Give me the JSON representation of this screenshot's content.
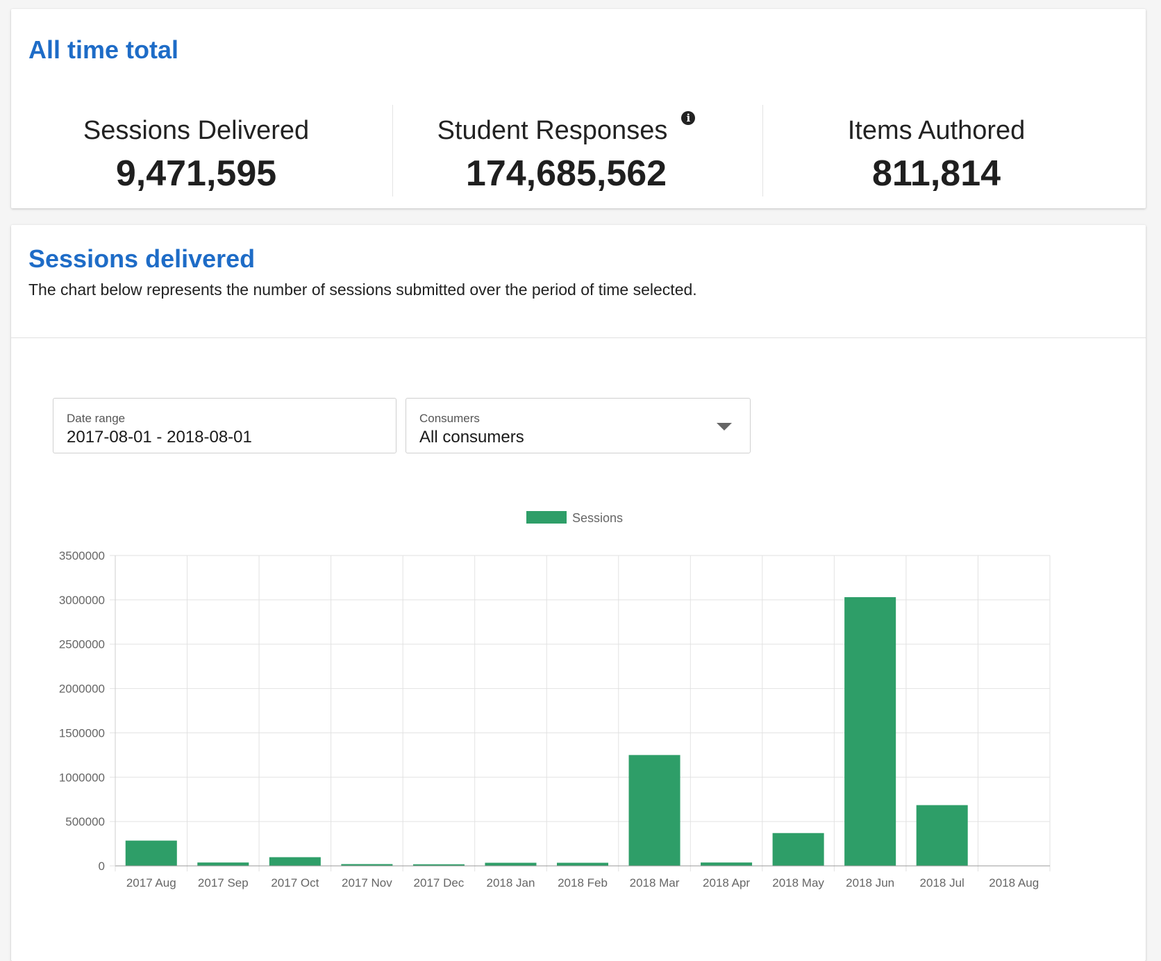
{
  "all_time": {
    "title": "All time total",
    "stats": [
      {
        "label": "Sessions Delivered",
        "value": "9,471,595"
      },
      {
        "label": "Student Responses",
        "value": "174,685,562",
        "info_icon": "info-icon"
      },
      {
        "label": "Items Authored",
        "value": "811,814"
      }
    ]
  },
  "sessions_delivered": {
    "title": "Sessions delivered",
    "description": "The chart below represents the number of sessions submitted over the period of time selected.",
    "filters": {
      "date_range": {
        "label": "Date range",
        "value": "2017-08-01 - 2018-08-01"
      },
      "consumers": {
        "label": "Consumers",
        "value": "All consumers",
        "icon": "chevron-down-icon"
      }
    }
  },
  "colors": {
    "accent": "#1e6cc7",
    "bar": "#2e9e68",
    "grid": "#e2e2e2"
  },
  "chart_data": {
    "type": "bar",
    "categories": [
      "2017 Aug",
      "2017 Sep",
      "2017 Oct",
      "2017 Nov",
      "2017 Dec",
      "2018 Jan",
      "2018 Feb",
      "2018 Mar",
      "2018 Apr",
      "2018 May",
      "2018 Jun",
      "2018 Jul",
      "2018 Aug"
    ],
    "series": [
      {
        "name": "Sessions",
        "values": [
          285000,
          38000,
          98000,
          20000,
          18000,
          35000,
          35000,
          1250000,
          38000,
          370000,
          3030000,
          685000,
          0
        ]
      }
    ],
    "ylim": [
      0,
      3500000
    ],
    "yticks": [
      "3500000",
      "3000000",
      "2500000",
      "2000000",
      "1500000",
      "1000000",
      "500000",
      "0"
    ],
    "grid": true,
    "legend_position": "top-center"
  }
}
